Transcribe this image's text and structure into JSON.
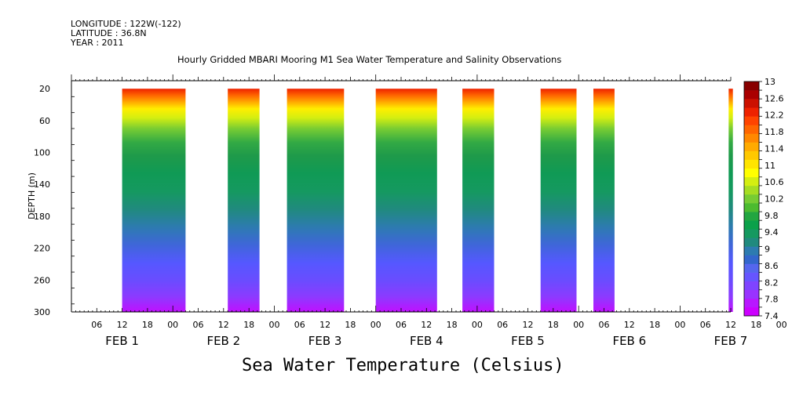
{
  "header": {
    "longitude": "LONGITUDE : 122W(-122)",
    "latitude": "LATITUDE : 36.8N",
    "year": "YEAR : 2011"
  },
  "chart_data": {
    "type": "heatmap",
    "title": "Hourly Gridded MBARI Mooring M1 Sea Water Temperature and Salinity Observations",
    "bottom_title": "Sea Water Temperature (Celsius)",
    "ylabel": "DEPTH (m)",
    "ylim": [
      300,
      10
    ],
    "y_ticks": [
      20,
      60,
      100,
      140,
      180,
      220,
      260,
      300
    ],
    "x_range_hours": [
      0,
      156
    ],
    "x_tick_labels": [
      "06",
      "12",
      "18",
      "00",
      "06",
      "12",
      "18",
      "00",
      "06",
      "12",
      "18",
      "00",
      "06",
      "12",
      "18",
      "00",
      "06",
      "12",
      "18",
      "00",
      "06",
      "12",
      "18",
      "00",
      "06",
      "12",
      "18",
      "00",
      "06",
      "12",
      "18",
      "00"
    ],
    "date_labels": [
      "FEB 1",
      "FEB 2",
      "FEB 3",
      "FEB 4",
      "FEB 5",
      "FEB 6",
      "FEB 7"
    ],
    "data_segments_hours": [
      [
        12,
        27
      ],
      [
        37,
        44.5
      ],
      [
        51,
        64.5
      ],
      [
        72,
        86.5
      ],
      [
        92.5,
        100
      ],
      [
        111,
        119.5
      ],
      [
        123.5,
        128.5
      ],
      [
        155.5,
        156.5
      ]
    ],
    "colorbar": {
      "ticks": [
        "13",
        "12.6",
        "12.2",
        "11.8",
        "11.4",
        "11",
        "10.6",
        "10.2",
        "9.8",
        "9.4",
        "9",
        "8.6",
        "8.2",
        "7.8",
        "7.4"
      ],
      "range": [
        7.4,
        13
      ],
      "colors": [
        "#cc00ff",
        "#b817ff",
        "#9933ff",
        "#7f44ff",
        "#6655ff",
        "#5566ee",
        "#3366cc",
        "#2d7bb0",
        "#208a7e",
        "#159960",
        "#0ba14a",
        "#22a640",
        "#4cbb2f",
        "#77cc33",
        "#a6dd22",
        "#d4ee11",
        "#ffff00",
        "#ffe500",
        "#ffc800",
        "#ffaa00",
        "#ff8800",
        "#ff6600",
        "#ff4400",
        "#ee2200",
        "#cc1100",
        "#aa0000",
        "#880000"
      ]
    }
  }
}
